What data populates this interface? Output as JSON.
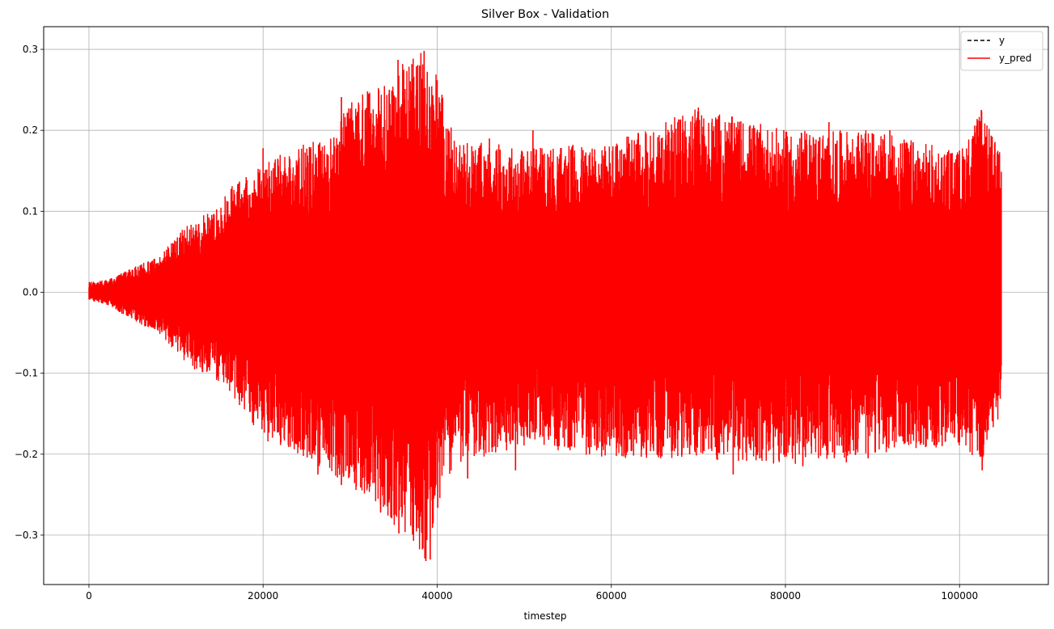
{
  "chart_data": {
    "type": "line",
    "title": "Silver Box - Validation",
    "xlabel": "timestep",
    "ylabel": "",
    "xlim": [
      -5200,
      110200
    ],
    "ylim": [
      -0.361,
      0.328
    ],
    "xticks": [
      0,
      20000,
      40000,
      60000,
      80000,
      100000
    ],
    "xtick_labels": [
      "0",
      "20000",
      "40000",
      "60000",
      "80000",
      "100000"
    ],
    "yticks": [
      -0.3,
      -0.2,
      -0.1,
      0.0,
      0.1,
      0.2,
      0.3
    ],
    "ytick_labels": [
      "−0.3",
      "−0.2",
      "−0.1",
      "0.0",
      "0.1",
      "0.2",
      "0.3"
    ],
    "grid": true,
    "legend_position": "top-right",
    "series": [
      {
        "name": "y",
        "color": "#000000",
        "style": "dashed"
      },
      {
        "name": "y_pred",
        "color": "#ff0000",
        "style": "solid"
      }
    ],
    "n_points": 104800,
    "envelope": {
      "x": [
        0,
        2000,
        5000,
        8000,
        10000,
        12000,
        15000,
        16000,
        18000,
        20000,
        24000,
        28000,
        30000,
        33000,
        36000,
        38500,
        40000,
        42000,
        50000,
        60000,
        70000,
        80000,
        90000,
        100000,
        102500,
        104800
      ],
      "upper": [
        0.013,
        0.015,
        0.03,
        0.045,
        0.07,
        0.09,
        0.105,
        0.13,
        0.145,
        0.16,
        0.18,
        0.195,
        0.24,
        0.25,
        0.285,
        0.298,
        0.27,
        0.19,
        0.18,
        0.185,
        0.228,
        0.2,
        0.2,
        0.175,
        0.225,
        0.17
      ],
      "lower": [
        -0.01,
        -0.015,
        -0.035,
        -0.05,
        -0.075,
        -0.095,
        -0.11,
        -0.12,
        -0.15,
        -0.185,
        -0.2,
        -0.225,
        -0.24,
        -0.26,
        -0.3,
        -0.332,
        -0.27,
        -0.215,
        -0.19,
        -0.205,
        -0.205,
        -0.215,
        -0.2,
        -0.19,
        -0.22,
        -0.145
      ]
    },
    "peaks": [
      {
        "x": 20000,
        "y": 0.178
      },
      {
        "x": 24000,
        "y": 0.16
      },
      {
        "x": 26300,
        "y": -0.225
      },
      {
        "x": 29000,
        "y": 0.241
      },
      {
        "x": 29000,
        "y": -0.238
      },
      {
        "x": 31000,
        "y": 0.186
      },
      {
        "x": 32000,
        "y": 0.248
      },
      {
        "x": 33500,
        "y": -0.272
      },
      {
        "x": 34500,
        "y": 0.25
      },
      {
        "x": 35500,
        "y": 0.287
      },
      {
        "x": 35600,
        "y": -0.298
      },
      {
        "x": 37000,
        "y": 0.249
      },
      {
        "x": 38500,
        "y": 0.298
      },
      {
        "x": 38700,
        "y": -0.332
      },
      {
        "x": 39200,
        "y": -0.33
      },
      {
        "x": 40000,
        "y": 0.262
      },
      {
        "x": 43500,
        "y": -0.23
      },
      {
        "x": 46000,
        "y": 0.19
      },
      {
        "x": 49000,
        "y": -0.22
      },
      {
        "x": 51000,
        "y": 0.2
      },
      {
        "x": 54000,
        "y": -0.19
      },
      {
        "x": 57500,
        "y": -0.2
      },
      {
        "x": 61000,
        "y": 0.175
      },
      {
        "x": 64000,
        "y": 0.196
      },
      {
        "x": 66000,
        "y": -0.19
      },
      {
        "x": 69000,
        "y": -0.2
      },
      {
        "x": 70000,
        "y": 0.228
      },
      {
        "x": 74000,
        "y": -0.225
      },
      {
        "x": 76000,
        "y": 0.175
      },
      {
        "x": 80000,
        "y": 0.19
      },
      {
        "x": 82000,
        "y": -0.215
      },
      {
        "x": 85000,
        "y": 0.21
      },
      {
        "x": 87000,
        "y": -0.21
      },
      {
        "x": 89500,
        "y": -0.205
      },
      {
        "x": 92000,
        "y": 0.2
      },
      {
        "x": 95000,
        "y": 0.16
      },
      {
        "x": 98000,
        "y": -0.19
      },
      {
        "x": 100000,
        "y": 0.175
      },
      {
        "x": 102500,
        "y": 0.225
      },
      {
        "x": 102600,
        "y": -0.22
      },
      {
        "x": 104000,
        "y": 0.17
      }
    ]
  }
}
